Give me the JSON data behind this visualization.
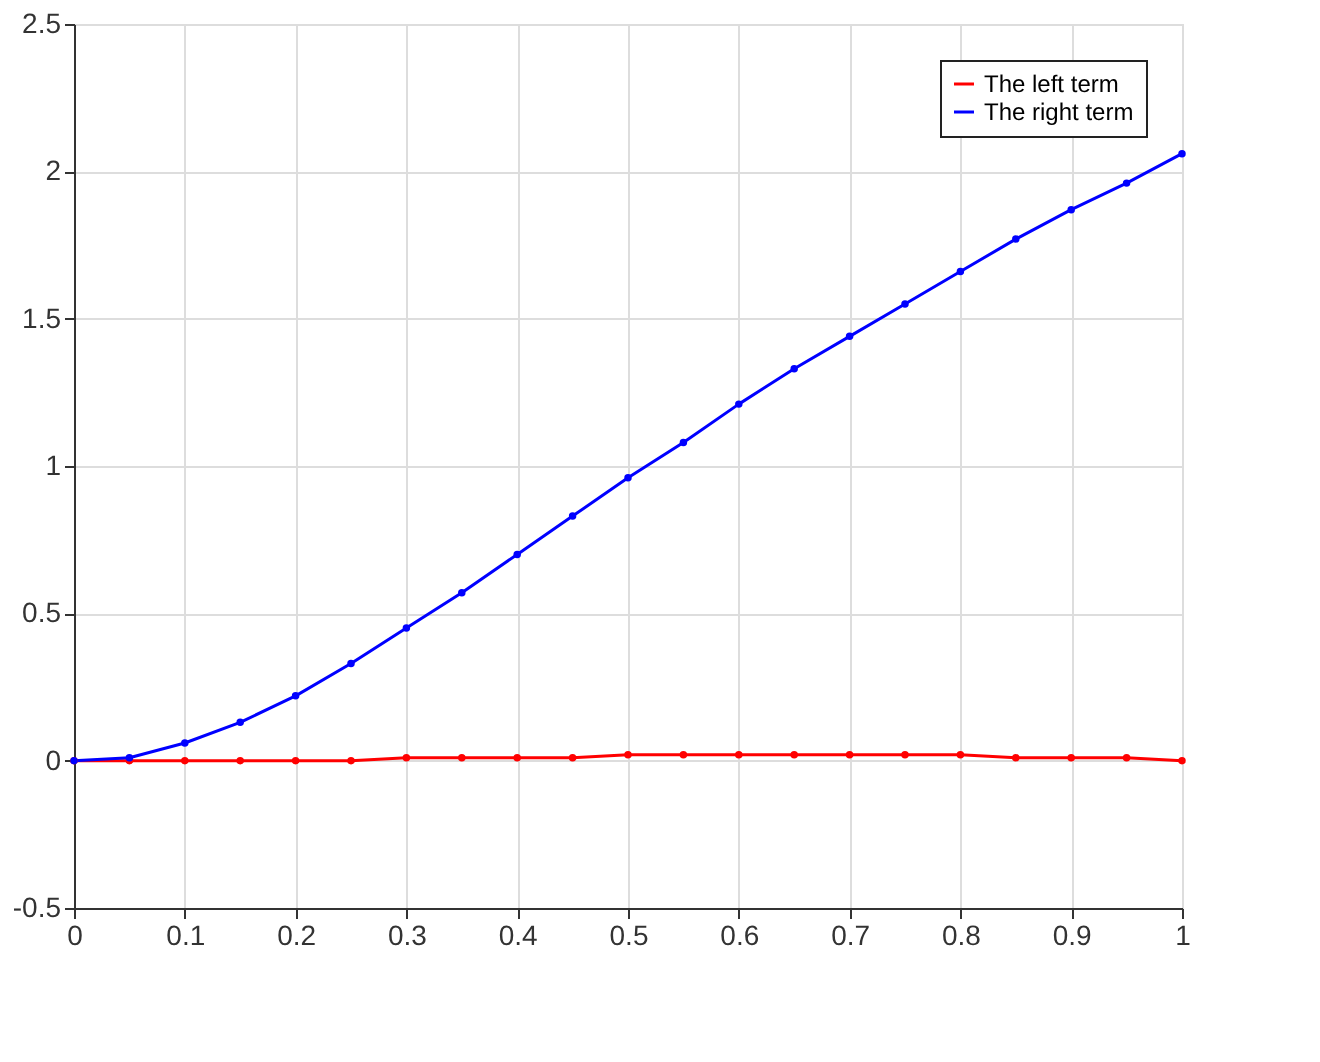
{
  "chart_data": {
    "type": "line",
    "x": [
      0,
      0.05,
      0.1,
      0.15,
      0.2,
      0.25,
      0.3,
      0.35,
      0.4,
      0.45,
      0.5,
      0.55,
      0.6,
      0.65,
      0.7,
      0.75,
      0.8,
      0.85,
      0.9,
      0.95,
      1.0
    ],
    "series": [
      {
        "name": "The left term",
        "color": "#ff0000",
        "values": [
          0,
          0,
          0,
          0,
          0,
          0,
          0.01,
          0.01,
          0.01,
          0.01,
          0.02,
          0.02,
          0.02,
          0.02,
          0.02,
          0.02,
          0.02,
          0.01,
          0.01,
          0.01,
          0
        ]
      },
      {
        "name": "The right term",
        "color": "#0000ff",
        "values": [
          0,
          0.01,
          0.06,
          0.13,
          0.22,
          0.33,
          0.45,
          0.57,
          0.7,
          0.83,
          0.96,
          1.08,
          1.21,
          1.33,
          1.44,
          1.55,
          1.66,
          1.77,
          1.87,
          1.96,
          2.06
        ]
      }
    ],
    "xlim": [
      0,
      1
    ],
    "xticks": [
      0,
      0.1,
      0.2,
      0.3,
      0.4,
      0.5,
      0.6,
      0.7,
      0.8,
      0.9,
      1
    ],
    "ylim": [
      -0.5,
      2.5
    ],
    "yticks": [
      -0.5,
      0,
      0.5,
      1,
      1.5,
      2,
      2.5
    ],
    "grid": true,
    "legend": "top right",
    "marker": "circle",
    "line_style": "solid"
  }
}
